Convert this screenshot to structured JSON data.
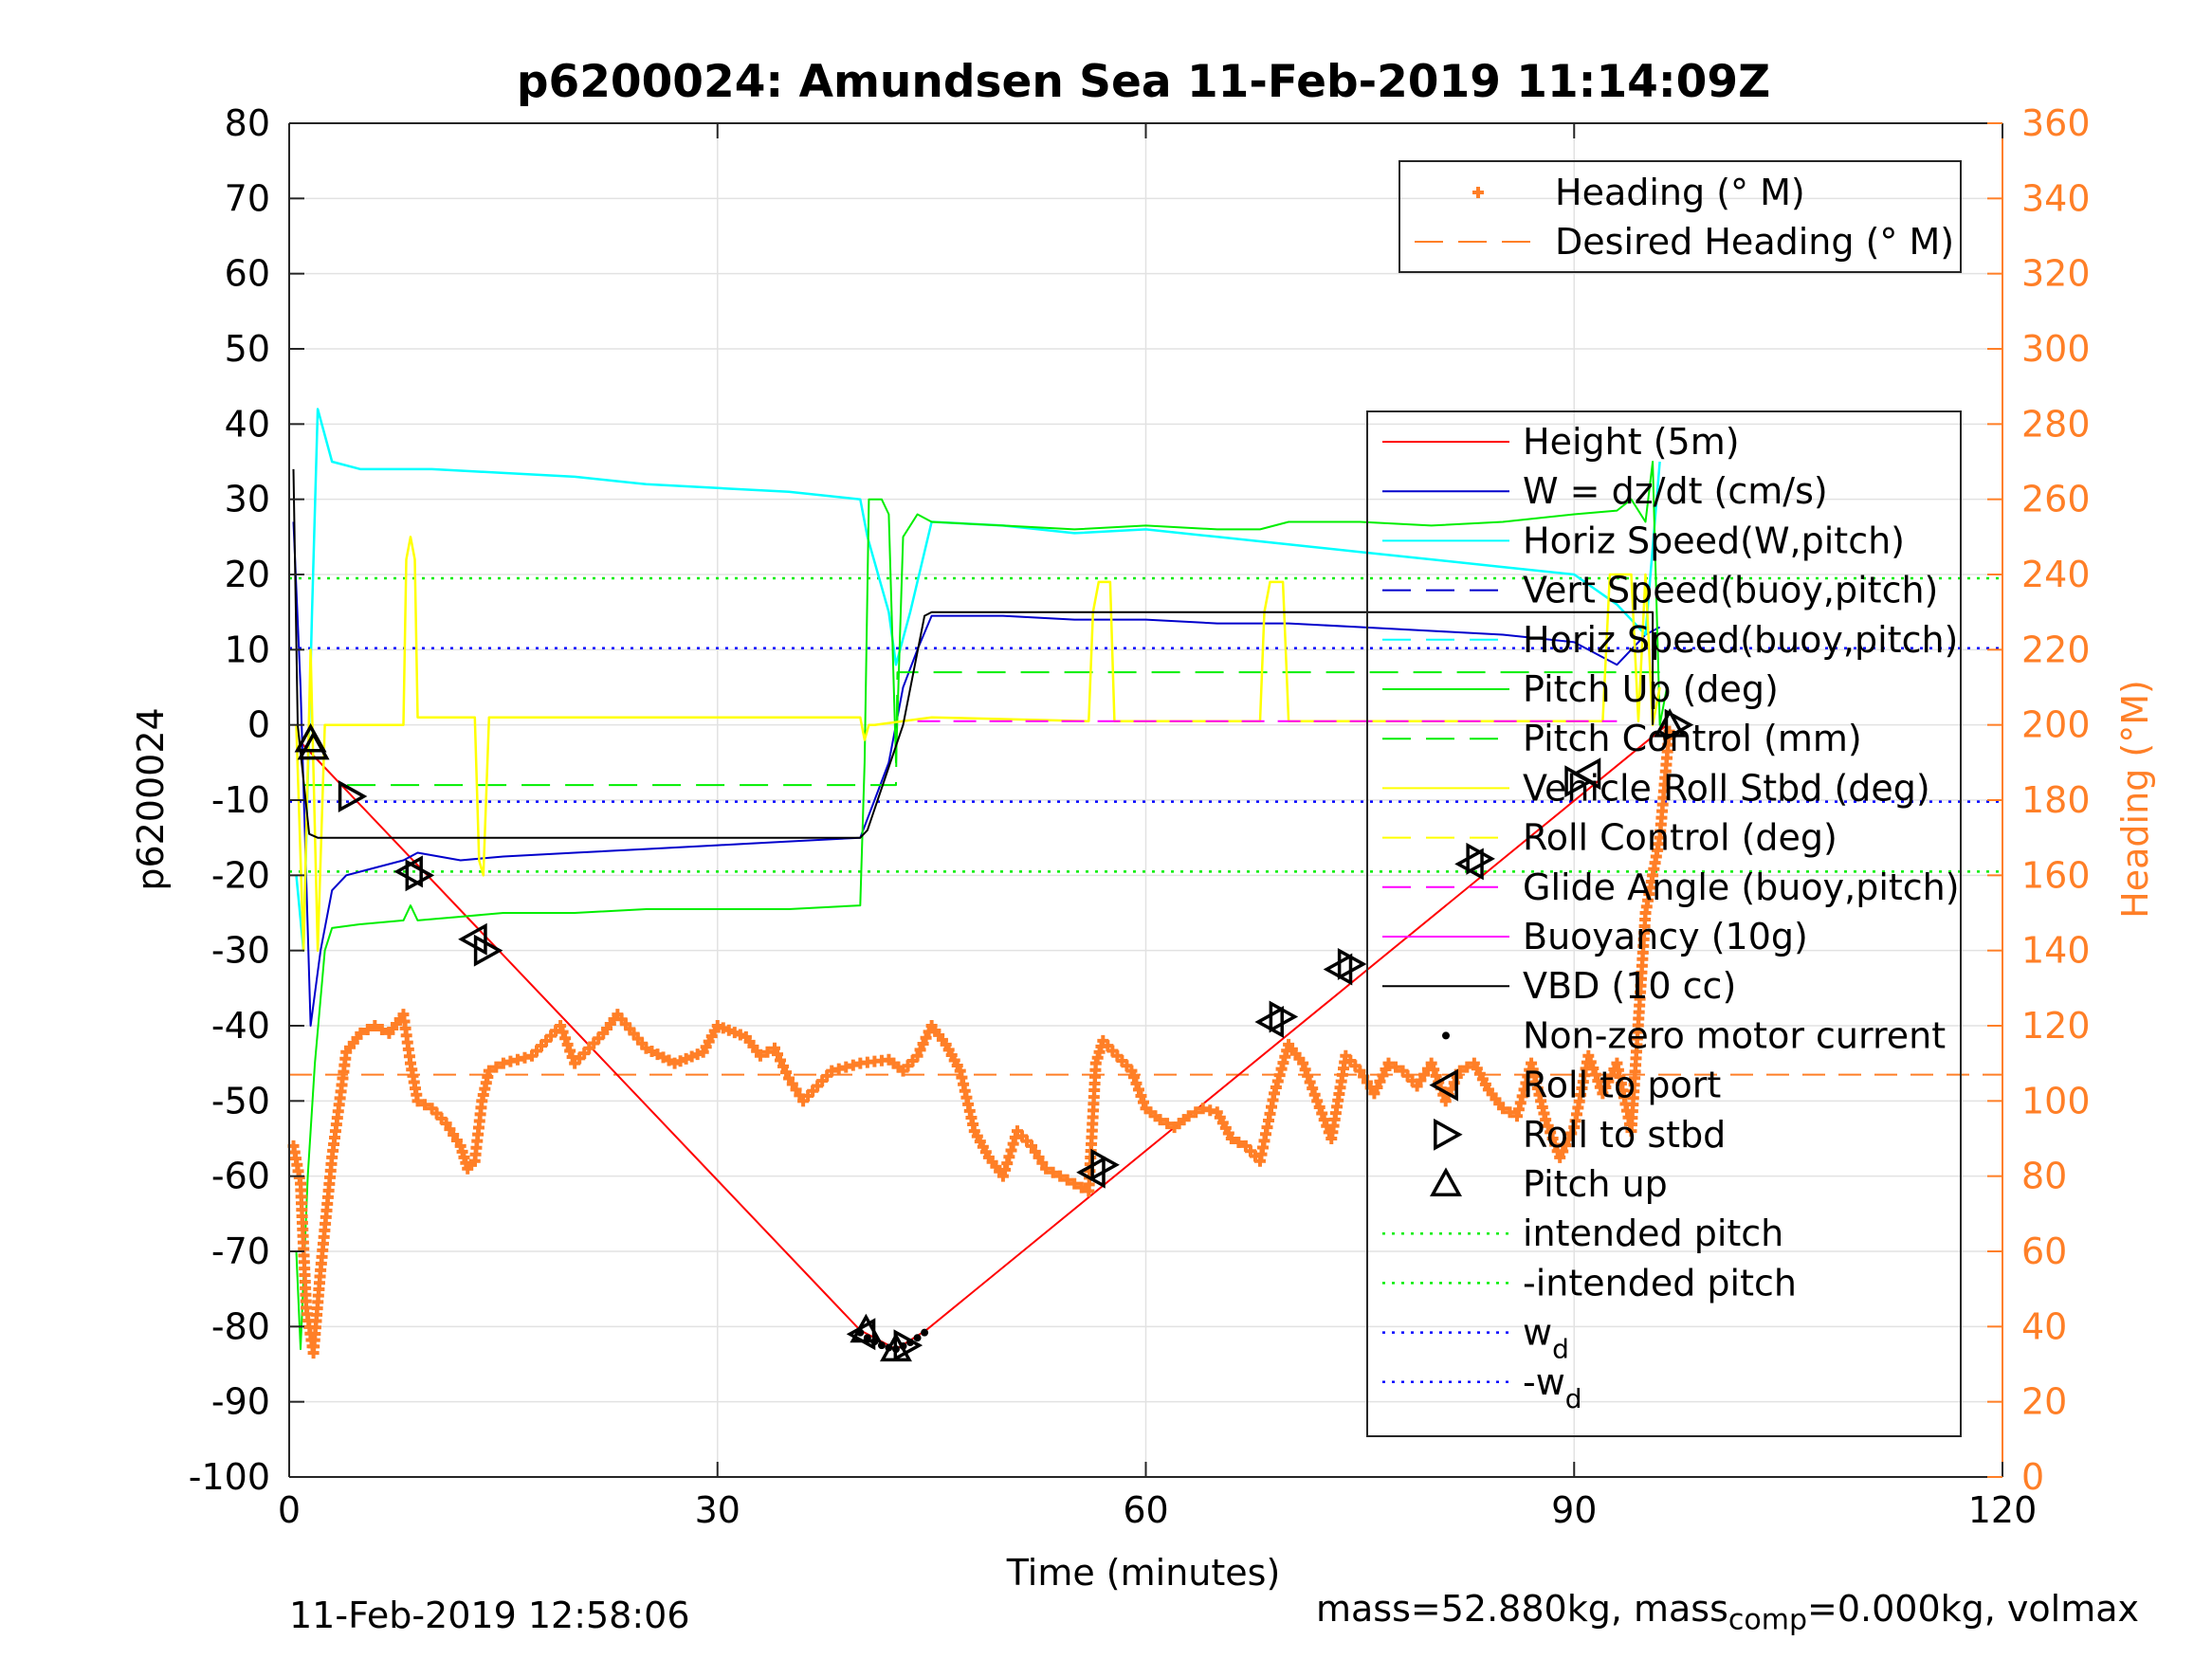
{
  "chart_data": {
    "type": "line",
    "title": "p6200024: Amundsen Sea 11-Feb-2019 11:14:09Z",
    "xlabel": "Time (minutes)",
    "ylabel_left": "p6200024",
    "ylabel_right": "Heading (°M)",
    "xlim": [
      0,
      120
    ],
    "ylim_left": [
      -100,
      80
    ],
    "ylim_right": [
      0,
      360
    ],
    "xticks": [
      0,
      30,
      60,
      90,
      120
    ],
    "yticks_left": [
      80,
      70,
      60,
      50,
      40,
      30,
      20,
      10,
      0,
      -10,
      -20,
      -30,
      -40,
      -50,
      -60,
      -70,
      -80,
      -90,
      -100
    ],
    "yticks_right": [
      360,
      340,
      320,
      300,
      280,
      260,
      240,
      220,
      200,
      180,
      160,
      140,
      120,
      100,
      80,
      60,
      40,
      20,
      0
    ],
    "grid": true,
    "colors": {
      "height": "#ff0000",
      "w": "#0000cc",
      "horiz_speed": "#00ffff",
      "pitch": "#00ee00",
      "roll": "#ffff00",
      "glide": "#ff00ff",
      "vbd": "#000000",
      "heading": "#ff7f27",
      "wd": "#0000ff"
    },
    "legend_heading": {
      "placement": "top-right",
      "entries": [
        {
          "label": "Heading (° M)",
          "style": "plus",
          "color": "#ff7f27"
        },
        {
          "label": "Desired Heading (° M)",
          "style": "dash",
          "color": "#ff7f27"
        }
      ]
    },
    "legend_main": {
      "placement": "right",
      "entries": [
        {
          "label": "Height (5m)",
          "style": "solid",
          "color": "#ff0000"
        },
        {
          "label": "W = dz/dt (cm/s)",
          "style": "solid",
          "color": "#0000cc"
        },
        {
          "label": "Horiz Speed(W,pitch)",
          "style": "solid",
          "color": "#00ffff"
        },
        {
          "label": "Vert Speed(buoy,pitch)",
          "style": "dash",
          "color": "#0000cc"
        },
        {
          "label": "Horiz Speed(buoy,pitch)",
          "style": "dash",
          "color": "#00ffff"
        },
        {
          "label": "Pitch Up (deg)",
          "style": "solid",
          "color": "#00ee00"
        },
        {
          "label": "Pitch Control (mm)",
          "style": "dash",
          "color": "#00ee00"
        },
        {
          "label": "Vehicle Roll Stbd (deg)",
          "style": "solid",
          "color": "#ffff00"
        },
        {
          "label": "Roll Control (deg)",
          "style": "dash",
          "color": "#ffff00"
        },
        {
          "label": "Glide Angle (buoy,pitch)",
          "style": "dash",
          "color": "#ff00ff"
        },
        {
          "label": "Buoyancy (10g)",
          "style": "solid",
          "color": "#ff00ff"
        },
        {
          "label": "VBD (10 cc)",
          "style": "solid",
          "color": "#000000"
        },
        {
          "label": "Non-zero motor current",
          "style": "dot",
          "color": "#000000"
        },
        {
          "label": "Roll to port",
          "style": "tri-left",
          "color": "#000000"
        },
        {
          "label": "Roll to stbd",
          "style": "tri-right",
          "color": "#000000"
        },
        {
          "label": "Pitch up",
          "style": "tri-up",
          "color": "#000000"
        },
        {
          "label": "intended pitch",
          "style": "dotted",
          "color": "#00ee00"
        },
        {
          "label": "-intended pitch",
          "style": "dotted",
          "color": "#00ee00"
        },
        {
          "label": "w",
          "sub": "d",
          "style": "dotted",
          "color": "#0000ff"
        },
        {
          "label": "-w",
          "sub": "d",
          "style": "dotted",
          "color": "#0000ff"
        }
      ]
    },
    "reference_lines": {
      "intended_pitch": 19.5,
      "neg_intended_pitch": -19.5,
      "wd": 10.2,
      "neg_wd": -10.2,
      "desired_heading": 107
    },
    "series": [
      {
        "name": "Height (5m)",
        "axis": "left",
        "x": [
          0.9,
          40,
          42.5,
          44.6,
          96.5
        ],
        "y": [
          -2.5,
          -80.5,
          -83,
          -80.5,
          0
        ]
      },
      {
        "name": "W = dz/dt (cm/s)",
        "axis": "left",
        "x": [
          0.3,
          0.8,
          1.5,
          2.2,
          3,
          4,
          6,
          8,
          9,
          12,
          15,
          20,
          25,
          30,
          35,
          40,
          41,
          42,
          43,
          44,
          45,
          50,
          55,
          60,
          65,
          70,
          75,
          80,
          85,
          90,
          93,
          94,
          95,
          96
        ],
        "y": [
          27,
          5,
          -40,
          -30,
          -22,
          -20,
          -19,
          -18,
          -17,
          -18,
          -17.5,
          -17,
          -16.5,
          -16,
          -15.5,
          -15,
          -10,
          -5,
          5,
          10,
          14.5,
          14.5,
          14,
          14,
          13.5,
          13.5,
          13,
          12.5,
          12,
          11,
          8,
          10,
          12,
          13
        ]
      },
      {
        "name": "Horiz Speed(W,pitch)",
        "axis": "left",
        "x": [
          0.5,
          1,
          1.6,
          2,
          3,
          5,
          10,
          15,
          20,
          25,
          30,
          35,
          40,
          40.5,
          42,
          42.5,
          43.5,
          45,
          50,
          55,
          60,
          65,
          70,
          75,
          80,
          85,
          90,
          93,
          95,
          96
        ],
        "y": [
          -20,
          -30,
          15,
          42,
          35,
          34,
          34,
          33.5,
          33,
          32,
          31.5,
          31,
          30,
          25,
          15,
          8,
          15,
          27,
          26.5,
          25.5,
          26,
          25,
          24,
          23,
          22,
          21,
          20,
          16,
          12,
          35
        ]
      },
      {
        "name": "Pitch Up (deg)",
        "axis": "left",
        "x": [
          0.5,
          0.8,
          1.3,
          1.8,
          2.5,
          3,
          5,
          8,
          8.5,
          9,
          12,
          15,
          20,
          25,
          30,
          35,
          40,
          40.3,
          40.6,
          41.5,
          42,
          42.5,
          43,
          44,
          45,
          50,
          55,
          60,
          65,
          68,
          70,
          75,
          80,
          85,
          90,
          93,
          94,
          95,
          95.5,
          96,
          96.5
        ],
        "y": [
          -70,
          -83,
          -60,
          -45,
          -30,
          -27,
          -26.5,
          -26,
          -24,
          -26,
          -25.5,
          -25,
          -25,
          -24.5,
          -24.5,
          -24.5,
          -24,
          -5,
          30,
          30,
          28,
          -5,
          25,
          28,
          27,
          26.5,
          26,
          26.5,
          26,
          26,
          27,
          27,
          26.5,
          27,
          28,
          28.5,
          30,
          27,
          35,
          0,
          5
        ]
      },
      {
        "name": "Pitch Control (mm)",
        "axis": "left",
        "x": [
          1,
          40,
          40.5,
          42.5,
          42.6,
          96
        ],
        "y": [
          -8,
          -8,
          -8,
          -8,
          7,
          7
        ]
      },
      {
        "name": "Vehicle Roll Stbd (deg)",
        "axis": "left",
        "x": [
          0.5,
          1,
          1.5,
          2,
          2.5,
          3,
          8,
          8.2,
          8.5,
          8.8,
          9,
          13,
          13.3,
          13.6,
          14,
          20,
          30,
          40,
          40.3,
          40.6,
          41,
          45,
          56,
          56.3,
          56.7,
          57.5,
          57.8,
          68,
          68.3,
          68.7,
          69.6,
          70,
          80,
          85,
          90,
          92,
          92.5,
          94,
          94.5,
          95,
          95.5,
          96
        ],
        "y": [
          0,
          -30,
          10,
          -30,
          0,
          0,
          0,
          22,
          25,
          22,
          1,
          1,
          -18,
          -20,
          1,
          1,
          1,
          1,
          -2,
          0,
          0,
          1,
          0.5,
          15,
          19,
          19,
          0.5,
          0.5,
          15,
          19,
          19,
          0.5,
          0.5,
          0.5,
          0.5,
          0.5,
          20,
          20,
          0.5,
          20,
          0,
          5
        ]
      },
      {
        "name": "Glide Angle (buoy,pitch)",
        "axis": "left",
        "x": [
          44,
          93
        ],
        "y": [
          0.5,
          0.5
        ]
      },
      {
        "name": "VBD (10 cc)",
        "axis": "left",
        "x": [
          0.3,
          0.6,
          1.4,
          2,
          20,
          35,
          40,
          40.5,
          43,
          44.5,
          45,
          60,
          75,
          90,
          95.5,
          95.5
        ],
        "y": [
          34,
          0,
          -14.5,
          -15,
          -15,
          -15,
          -15,
          -14,
          0,
          14.5,
          15,
          15,
          15,
          15,
          15,
          0
        ]
      },
      {
        "name": "Heading (° M)",
        "axis": "right",
        "x": [
          0.3,
          0.8,
          1.2,
          1.7,
          2.2,
          3,
          4,
          5,
          6,
          7,
          8,
          8.5,
          9,
          10,
          11,
          12,
          12.5,
          13,
          13.5,
          14,
          15,
          17,
          19,
          20,
          22,
          23,
          25,
          27,
          29,
          30,
          32,
          33,
          34,
          35,
          36,
          38,
          40,
          42,
          43,
          44,
          45,
          46,
          47,
          48,
          49,
          50,
          51,
          52,
          53,
          54,
          55,
          56,
          56.5,
          57,
          58,
          59,
          60,
          61,
          62,
          63,
          64,
          65,
          66,
          67,
          68,
          69,
          70,
          71,
          72,
          73,
          74,
          75,
          76,
          77,
          78,
          79,
          80,
          81,
          82,
          83,
          84,
          85,
          86,
          87,
          88,
          89,
          90,
          91,
          92,
          93,
          94,
          95,
          96,
          96.7
        ],
        "y": [
          88,
          78,
          45,
          33,
          55,
          85,
          113,
          118,
          120,
          118,
          123,
          110,
          100,
          98,
          94,
          88,
          82,
          84,
          100,
          108,
          110,
          112,
          120,
          110,
          118,
          123,
          114,
          110,
          113,
          120,
          117,
          112,
          114,
          106,
          100,
          108,
          110,
          111,
          108,
          112,
          120,
          115,
          108,
          92,
          85,
          80,
          92,
          88,
          82,
          80,
          78,
          76,
          110,
          116,
          112,
          108,
          98,
          95,
          93,
          96,
          98,
          97,
          90,
          88,
          84,
          102,
          115,
          110,
          100,
          90,
          112,
          108,
          102,
          110,
          108,
          104,
          110,
          100,
          108,
          110,
          103,
          98,
          96,
          110,
          95,
          85,
          93,
          112,
          102,
          110,
          92,
          150,
          170,
          200
        ]
      }
    ],
    "markers": {
      "pitch_up": {
        "x": [
          1.5,
          1.7,
          40.4,
          42.5,
          96.7
        ],
        "y": [
          -2,
          -3,
          -80.5,
          -83,
          0
        ]
      },
      "roll_to_port": {
        "x": [
          8.5,
          13,
          40.2,
          56.3,
          68.8,
          73.6,
          82.8,
          91
        ],
        "y": [
          -19.5,
          -28.5,
          -81,
          -59.5,
          -39.5,
          -32.5,
          -18.5,
          -6.5
        ]
      },
      "roll_to_stbd": {
        "x": [
          4.3,
          9,
          13.8,
          43.2,
          57,
          69.5,
          74.3,
          83.3,
          90.2,
          97.2
        ],
        "y": [
          -9.5,
          -20,
          -30,
          -82.5,
          -58.5,
          -38.8,
          -31.8,
          -17.8,
          -7.5,
          0
        ]
      },
      "motor_current_x": [
        40,
        40.5,
        41,
        41.5,
        42,
        42.5,
        43,
        43.5,
        44,
        44.5
      ],
      "motor_current_y": [
        -80.8,
        -81.5,
        -82,
        -82.5,
        -82.8,
        -83,
        -82.6,
        -82.1,
        -81.5,
        -80.8
      ]
    }
  },
  "footer": {
    "date_stamp": "11-Feb-2019 12:58:06",
    "mass_prefix": "mass=52.880kg, mass",
    "mass_sub": "comp",
    "mass_suffix": "=0.000kg, volmax"
  }
}
